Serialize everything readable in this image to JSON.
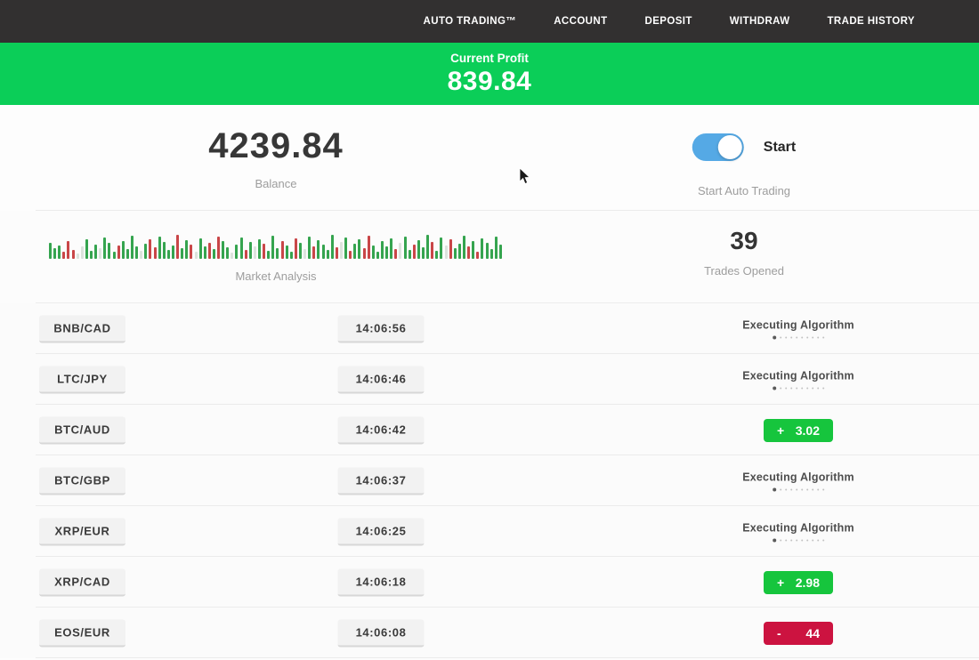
{
  "nav": {
    "bg": "#323030",
    "items": [
      "AUTO TRADING™",
      "ACCOUNT",
      "DEPOSIT",
      "WITHDRAW",
      "TRADE HISTORY"
    ]
  },
  "banner": {
    "label": "Current Profit",
    "value": "839.84",
    "bg": "#0bce58"
  },
  "account": {
    "balance_value": "4239.84",
    "balance_label": "Balance",
    "toggle_label": "Start",
    "toggle_caption": "Start Auto Trading",
    "toggle_state": "on",
    "toggle_color": "#55a9e5"
  },
  "market_analysis": {
    "label": "Market Analysis",
    "trades_opened": "39",
    "trades_label": "Trades Opened",
    "bar_colors": {
      "g": "#35a44f",
      "r": "#c94648",
      "l": "#dce3dd"
    },
    "bars": [
      [
        18,
        "g"
      ],
      [
        12,
        "g"
      ],
      [
        15,
        "g"
      ],
      [
        8,
        "r"
      ],
      [
        20,
        "r"
      ],
      [
        10,
        "r"
      ],
      [
        6,
        "l"
      ],
      [
        14,
        "l"
      ],
      [
        22,
        "g"
      ],
      [
        9,
        "g"
      ],
      [
        16,
        "g"
      ],
      [
        12,
        "l"
      ],
      [
        24,
        "g"
      ],
      [
        18,
        "g"
      ],
      [
        8,
        "g"
      ],
      [
        15,
        "r"
      ],
      [
        20,
        "g"
      ],
      [
        11,
        "g"
      ],
      [
        26,
        "g"
      ],
      [
        14,
        "g"
      ],
      [
        9,
        "l"
      ],
      [
        17,
        "g"
      ],
      [
        22,
        "r"
      ],
      [
        13,
        "r"
      ],
      [
        25,
        "g"
      ],
      [
        19,
        "g"
      ],
      [
        10,
        "g"
      ],
      [
        15,
        "g"
      ],
      [
        27,
        "r"
      ],
      [
        12,
        "g"
      ],
      [
        21,
        "g"
      ],
      [
        16,
        "r"
      ],
      [
        8,
        "l"
      ],
      [
        23,
        "g"
      ],
      [
        14,
        "g"
      ],
      [
        18,
        "r"
      ],
      [
        11,
        "g"
      ],
      [
        25,
        "r"
      ],
      [
        20,
        "g"
      ],
      [
        13,
        "g"
      ],
      [
        7,
        "l"
      ],
      [
        16,
        "g"
      ],
      [
        24,
        "g"
      ],
      [
        10,
        "r"
      ],
      [
        19,
        "g"
      ],
      [
        14,
        "l"
      ],
      [
        22,
        "g"
      ],
      [
        17,
        "r"
      ],
      [
        9,
        "g"
      ],
      [
        26,
        "g"
      ],
      [
        12,
        "g"
      ],
      [
        20,
        "r"
      ],
      [
        15,
        "g"
      ],
      [
        8,
        "g"
      ],
      [
        23,
        "r"
      ],
      [
        18,
        "g"
      ],
      [
        11,
        "l"
      ],
      [
        25,
        "g"
      ],
      [
        14,
        "r"
      ],
      [
        21,
        "g"
      ],
      [
        16,
        "g"
      ],
      [
        10,
        "g"
      ],
      [
        27,
        "g"
      ],
      [
        13,
        "r"
      ],
      [
        19,
        "l"
      ],
      [
        24,
        "g"
      ],
      [
        9,
        "r"
      ],
      [
        17,
        "g"
      ],
      [
        22,
        "g"
      ],
      [
        12,
        "r"
      ],
      [
        26,
        "r"
      ],
      [
        15,
        "g"
      ],
      [
        8,
        "g"
      ],
      [
        20,
        "g"
      ],
      [
        14,
        "g"
      ],
      [
        23,
        "g"
      ],
      [
        11,
        "r"
      ],
      [
        18,
        "l"
      ],
      [
        25,
        "g"
      ],
      [
        10,
        "g"
      ],
      [
        16,
        "r"
      ],
      [
        21,
        "g"
      ],
      [
        13,
        "g"
      ],
      [
        27,
        "g"
      ],
      [
        19,
        "r"
      ],
      [
        9,
        "g"
      ],
      [
        24,
        "g"
      ],
      [
        15,
        "l"
      ],
      [
        22,
        "r"
      ],
      [
        12,
        "g"
      ],
      [
        17,
        "g"
      ],
      [
        26,
        "g"
      ],
      [
        14,
        "r"
      ],
      [
        20,
        "g"
      ],
      [
        8,
        "r"
      ],
      [
        23,
        "g"
      ],
      [
        18,
        "g"
      ],
      [
        11,
        "g"
      ],
      [
        25,
        "g"
      ],
      [
        16,
        "g"
      ]
    ]
  },
  "trades": {
    "executing_label": "Executing Algorithm",
    "executing_dots": 10,
    "profit_color": "#16c53d",
    "loss_color": "#cc1340",
    "rows": [
      {
        "pair": "BNB/CAD",
        "time": "14:06:56",
        "status": "executing",
        "sign": "",
        "value": ""
      },
      {
        "pair": "LTC/JPY",
        "time": "14:06:46",
        "status": "executing",
        "sign": "",
        "value": ""
      },
      {
        "pair": "BTC/AUD",
        "time": "14:06:42",
        "status": "profit",
        "sign": "+",
        "value": "3.02"
      },
      {
        "pair": "BTC/GBP",
        "time": "14:06:37",
        "status": "executing",
        "sign": "",
        "value": ""
      },
      {
        "pair": "XRP/EUR",
        "time": "14:06:25",
        "status": "executing",
        "sign": "",
        "value": ""
      },
      {
        "pair": "XRP/CAD",
        "time": "14:06:18",
        "status": "profit",
        "sign": "+",
        "value": "2.98"
      },
      {
        "pair": "EOS/EUR",
        "time": "14:06:08",
        "status": "loss",
        "sign": "-",
        "value": "44"
      }
    ]
  }
}
